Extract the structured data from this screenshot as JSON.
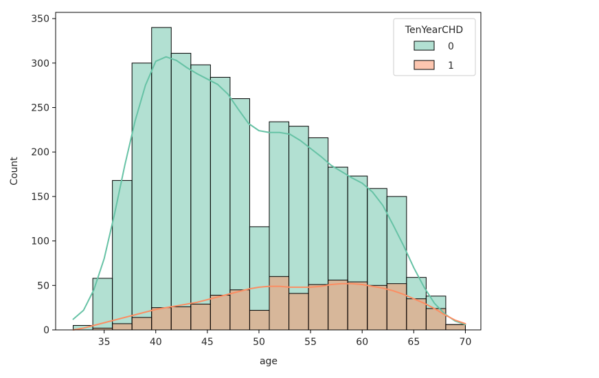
{
  "chart_data": {
    "type": "histogram",
    "xlabel": "age",
    "ylabel": "Count",
    "xlim": [
      30.3,
      71.5
    ],
    "ylim": [
      0,
      357
    ],
    "xticks": [
      35,
      40,
      45,
      50,
      55,
      60,
      65,
      70
    ],
    "yticks": [
      0,
      50,
      100,
      150,
      200,
      250,
      300,
      350
    ],
    "bin_edges": [
      32,
      33.9,
      35.8,
      37.7,
      39.6,
      41.5,
      43.4,
      45.3,
      47.2,
      49.1,
      51.0,
      52.9,
      54.8,
      56.7,
      58.6,
      60.5,
      62.4,
      64.3,
      66.2,
      68.1,
      70
    ],
    "legend": {
      "title": "TenYearCHD",
      "position": "top-right"
    },
    "series": [
      {
        "name": "0",
        "color": "#66c2a5",
        "counts": [
          5,
          58,
          168,
          300,
          340,
          311,
          298,
          284,
          260,
          116,
          234,
          229,
          216,
          183,
          173,
          159,
          150,
          59,
          38,
          6
        ],
        "kde": [
          [
            32,
            12
          ],
          [
            33,
            22
          ],
          [
            34,
            45
          ],
          [
            35,
            80
          ],
          [
            36,
            130
          ],
          [
            37,
            185
          ],
          [
            38,
            235
          ],
          [
            39,
            275
          ],
          [
            40,
            302
          ],
          [
            41,
            307
          ],
          [
            42,
            303
          ],
          [
            43,
            295
          ],
          [
            44,
            288
          ],
          [
            45,
            282
          ],
          [
            46,
            276
          ],
          [
            47,
            265
          ],
          [
            48,
            248
          ],
          [
            49,
            232
          ],
          [
            50,
            224
          ],
          [
            51,
            222
          ],
          [
            52,
            222
          ],
          [
            53,
            220
          ],
          [
            54,
            213
          ],
          [
            55,
            204
          ],
          [
            56,
            195
          ],
          [
            57,
            185
          ],
          [
            58,
            178
          ],
          [
            59,
            171
          ],
          [
            60,
            165
          ],
          [
            61,
            155
          ],
          [
            62,
            140
          ],
          [
            63,
            118
          ],
          [
            64,
            95
          ],
          [
            65,
            70
          ],
          [
            66,
            48
          ],
          [
            67,
            30
          ],
          [
            68,
            18
          ],
          [
            69,
            10
          ],
          [
            70,
            6
          ]
        ]
      },
      {
        "name": "1",
        "color": "#fc8d62",
        "counts": [
          0,
          2,
          7,
          14,
          25,
          26,
          29,
          39,
          45,
          22,
          60,
          41,
          51,
          56,
          54,
          50,
          52,
          35,
          24,
          6
        ],
        "kde": [
          [
            32,
            0
          ],
          [
            33,
            2
          ],
          [
            34,
            5
          ],
          [
            35,
            8
          ],
          [
            36,
            11
          ],
          [
            37,
            14
          ],
          [
            38,
            17
          ],
          [
            39,
            20
          ],
          [
            40,
            23
          ],
          [
            41,
            25
          ],
          [
            42,
            27
          ],
          [
            43,
            29
          ],
          [
            44,
            31
          ],
          [
            45,
            34
          ],
          [
            46,
            37
          ],
          [
            47,
            40
          ],
          [
            48,
            43
          ],
          [
            49,
            46
          ],
          [
            50,
            48
          ],
          [
            51,
            49
          ],
          [
            52,
            49
          ],
          [
            53,
            48
          ],
          [
            54,
            48
          ],
          [
            55,
            48
          ],
          [
            56,
            49
          ],
          [
            57,
            51
          ],
          [
            58,
            52
          ],
          [
            59,
            52
          ],
          [
            60,
            51
          ],
          [
            61,
            49
          ],
          [
            62,
            47
          ],
          [
            63,
            44
          ],
          [
            64,
            40
          ],
          [
            65,
            35
          ],
          [
            66,
            30
          ],
          [
            67,
            24
          ],
          [
            68,
            17
          ],
          [
            69,
            11
          ],
          [
            70,
            7
          ]
        ]
      }
    ]
  }
}
